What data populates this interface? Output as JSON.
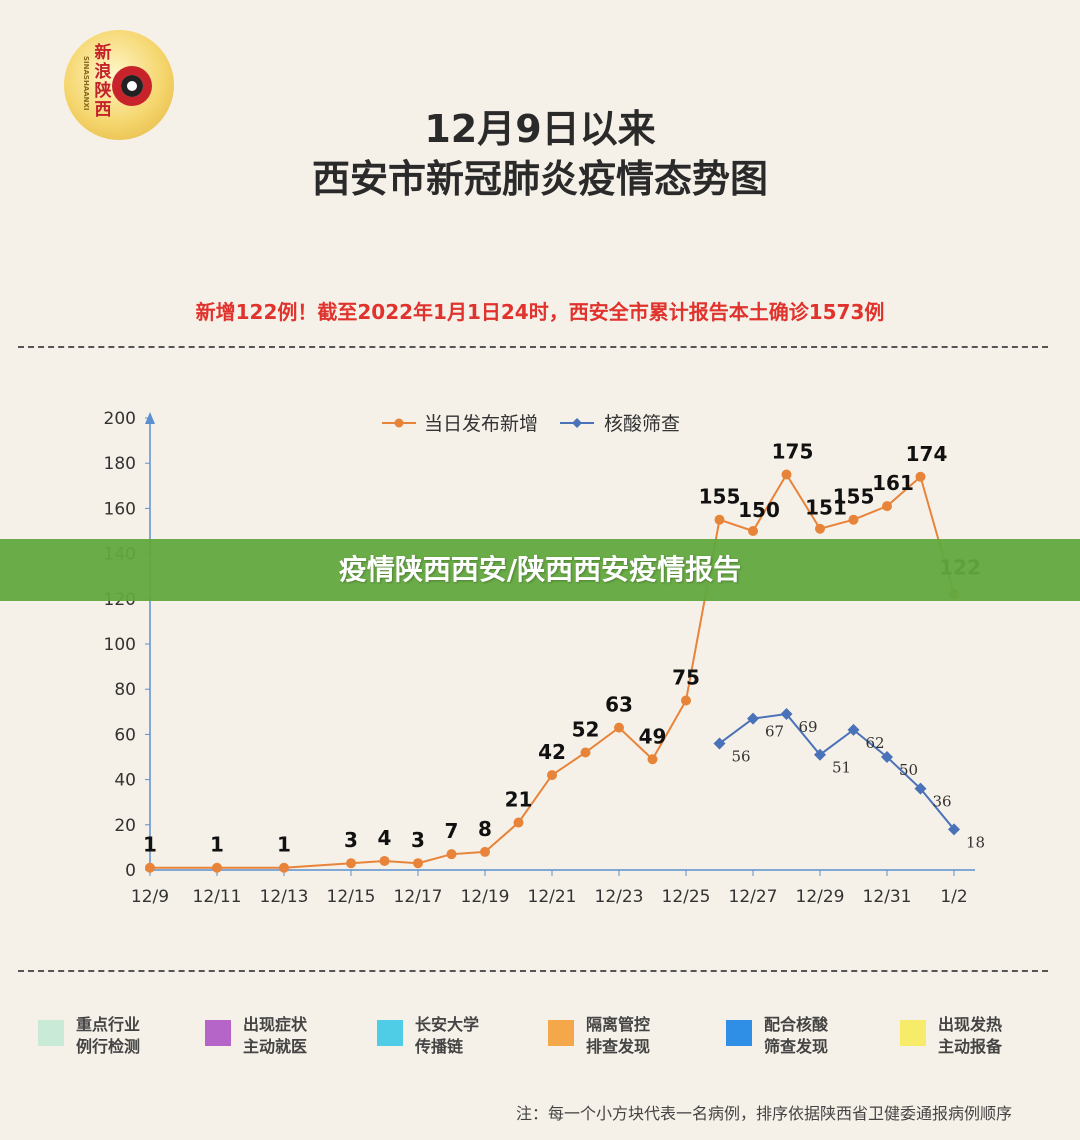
{
  "logo": {
    "text": "新浪陕西",
    "subtext": "SINASHAANXI"
  },
  "header": {
    "title_line1": "12月9日以来",
    "title_line2": "西安市新冠肺炎疫情态势图",
    "highlight": "新增122例！截至2022年1月1日24时，西安全市累计报告本土确诊1573例"
  },
  "banner": {
    "text": "疫情陕西西安/陕西西安疫情报告"
  },
  "colors": {
    "orange": "#e8833a",
    "blue": "#4a72b8",
    "red": "#e0332e",
    "green_banner": "#62a83e"
  },
  "chart_data": {
    "type": "line",
    "x": [
      "12/9",
      "12/10",
      "12/11",
      "12/12",
      "12/13",
      "12/14",
      "12/15",
      "12/16",
      "12/17",
      "12/18",
      "12/19",
      "12/20",
      "12/21",
      "12/22",
      "12/23",
      "12/24",
      "12/25",
      "12/26",
      "12/27",
      "12/28",
      "12/29",
      "12/30",
      "12/31",
      "1/1",
      "1/2"
    ],
    "xticks": [
      "12/9",
      "12/11",
      "12/13",
      "12/15",
      "12/17",
      "12/19",
      "12/21",
      "12/23",
      "12/25",
      "12/27",
      "12/29",
      "12/31",
      "1/2"
    ],
    "ylim": [
      0,
      200
    ],
    "yticks": [
      0,
      20,
      40,
      60,
      80,
      100,
      120,
      140,
      160,
      180,
      200
    ],
    "legend_position": "top",
    "series": [
      {
        "name": "当日发布新增",
        "color": "#e8833a",
        "marker": "circle",
        "values": [
          1,
          null,
          1,
          null,
          1,
          null,
          3,
          4,
          3,
          7,
          8,
          21,
          42,
          52,
          63,
          49,
          75,
          155,
          150,
          175,
          151,
          155,
          161,
          174,
          122
        ],
        "labels": [
          "1",
          null,
          "1",
          null,
          "1",
          null,
          "3",
          "4",
          "3",
          "7",
          "8",
          "21",
          "42",
          "52",
          "63",
          "49",
          "75",
          "155",
          "150",
          "175",
          "151",
          "155",
          "161",
          "174",
          "122"
        ]
      },
      {
        "name": "核酸筛查",
        "color": "#4a72b8",
        "marker": "diamond",
        "values": [
          null,
          null,
          null,
          null,
          null,
          null,
          null,
          null,
          null,
          null,
          null,
          null,
          null,
          null,
          null,
          null,
          null,
          56,
          67,
          69,
          51,
          62,
          50,
          36,
          18
        ],
        "labels": [
          null,
          null,
          null,
          null,
          null,
          null,
          null,
          null,
          null,
          null,
          null,
          null,
          null,
          null,
          null,
          null,
          null,
          "56",
          "67",
          "69",
          "51",
          "62",
          "50",
          "36",
          "18"
        ]
      }
    ]
  },
  "categories_legend": [
    {
      "label1": "重点行业",
      "label2": "例行检测",
      "color": "#c9ead6"
    },
    {
      "label1": "出现症状",
      "label2": "主动就医",
      "color": "#b565c8"
    },
    {
      "label1": "长安大学",
      "label2": "传播链",
      "color": "#4fcde6"
    },
    {
      "label1": "隔离管控",
      "label2": "排查发现",
      "color": "#f5a84a"
    },
    {
      "label1": "配合核酸",
      "label2": "筛查发现",
      "color": "#2f8fe6"
    },
    {
      "label1": "出现发热",
      "label2": "主动报备",
      "color": "#f7ec6a"
    }
  ],
  "footnote": "注：每一个小方块代表一名病例，排序依据陕西省卫健委通报病例顺序"
}
